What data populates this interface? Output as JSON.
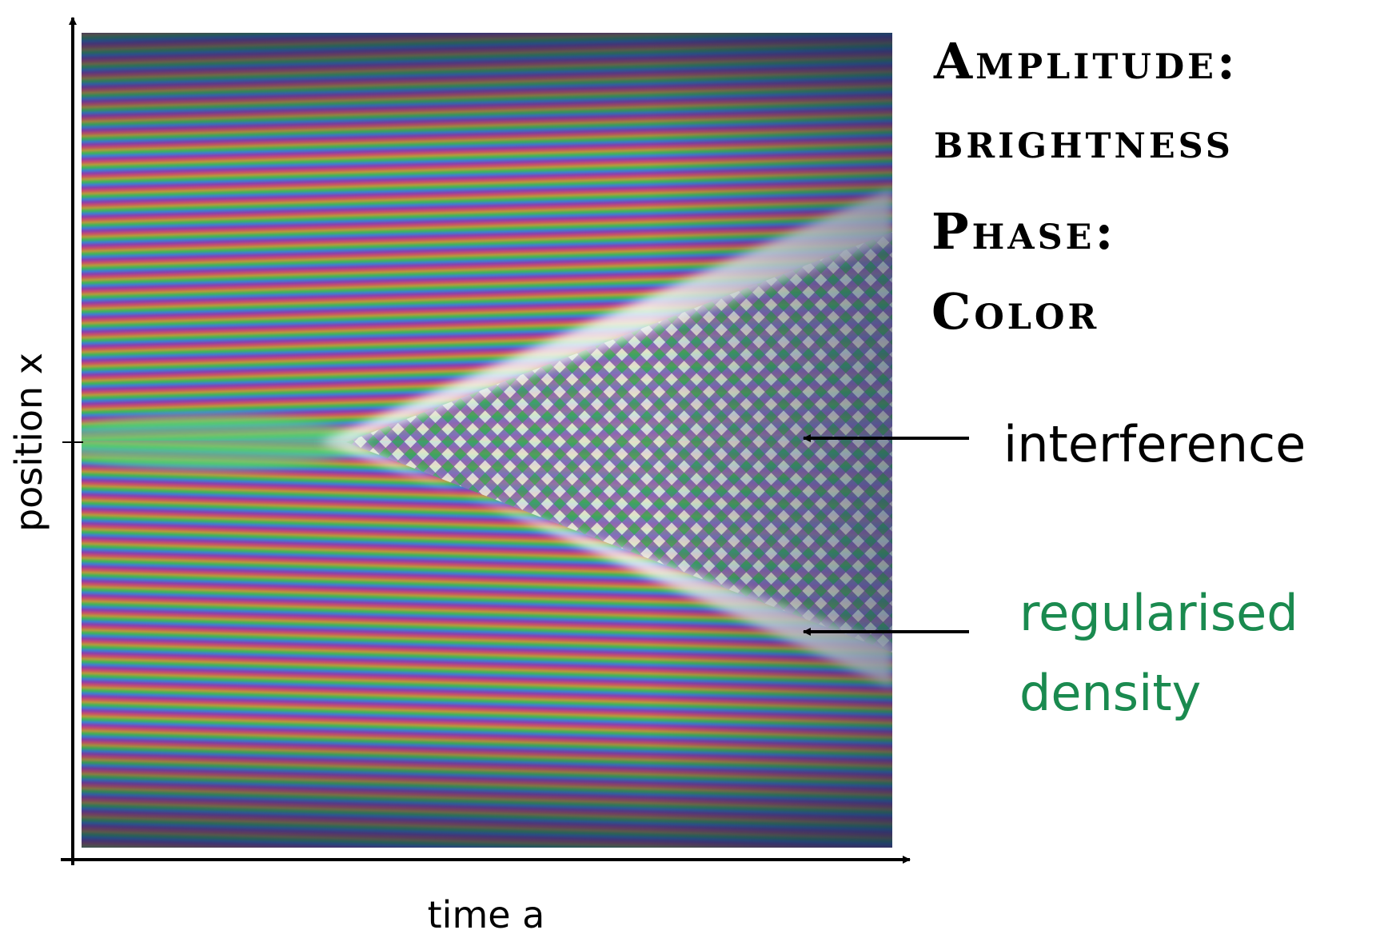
{
  "legend": {
    "amplitude_label": "Amplitude:",
    "amplitude_value": "brightness",
    "phase_label": "Phase:",
    "phase_value": "Color"
  },
  "annotations": {
    "interference": "interference",
    "regularised_density": [
      "regularised",
      "density"
    ]
  },
  "axes": {
    "y_label": "position x",
    "x_label": "time a"
  }
}
